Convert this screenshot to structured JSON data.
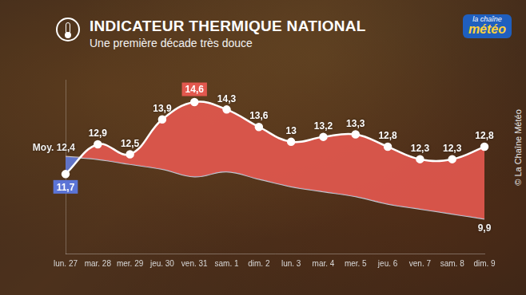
{
  "chart_data": {
    "type": "line",
    "title": "INDICATEUR THERMIQUE NATIONAL",
    "subtitle": "Une première décade très douce",
    "logo": "la chaîne météo",
    "credit": "© La Chaîne Météo",
    "categories": [
      "lun. 27",
      "mar. 28",
      "mer. 29",
      "jeu. 30",
      "ven. 31",
      "sam. 1",
      "dim. 2",
      "lun. 3",
      "mar. 4",
      "mer. 5",
      "jeu. 6",
      "ven. 7",
      "sam. 8",
      "dim. 9"
    ],
    "ylim": [
      8.5,
      15.5
    ],
    "tick_labels": "x",
    "grid": false,
    "data_labels": true,
    "series": [
      {
        "color": "#ffffff",
        "marker": "circle",
        "values": [
          11.7,
          12.9,
          12.5,
          13.9,
          14.6,
          14.3,
          13.6,
          13,
          13.2,
          13.3,
          12.8,
          12.3,
          12.3,
          12.8
        ],
        "value_labels": [
          "11,7",
          "12,9",
          "12,5",
          "13,9",
          "14,6",
          "14,3",
          "13,6",
          "13",
          "13,2",
          "13,3",
          "12,8",
          "12,3",
          "12,3",
          "12,8"
        ]
      },
      {
        "color": "#c8c8c8",
        "marker": "none",
        "values": [
          12.4,
          12.3,
          12.1,
          11.9,
          11.6,
          11.8,
          11.5,
          11.2,
          11.0,
          10.8,
          10.5,
          10.3,
          10.1,
          9.9
        ],
        "value_labels": [
          "Moy. 12,4",
          null,
          null,
          null,
          null,
          null,
          null,
          null,
          null,
          null,
          null,
          null,
          null,
          "9,9"
        ]
      }
    ]
  }
}
